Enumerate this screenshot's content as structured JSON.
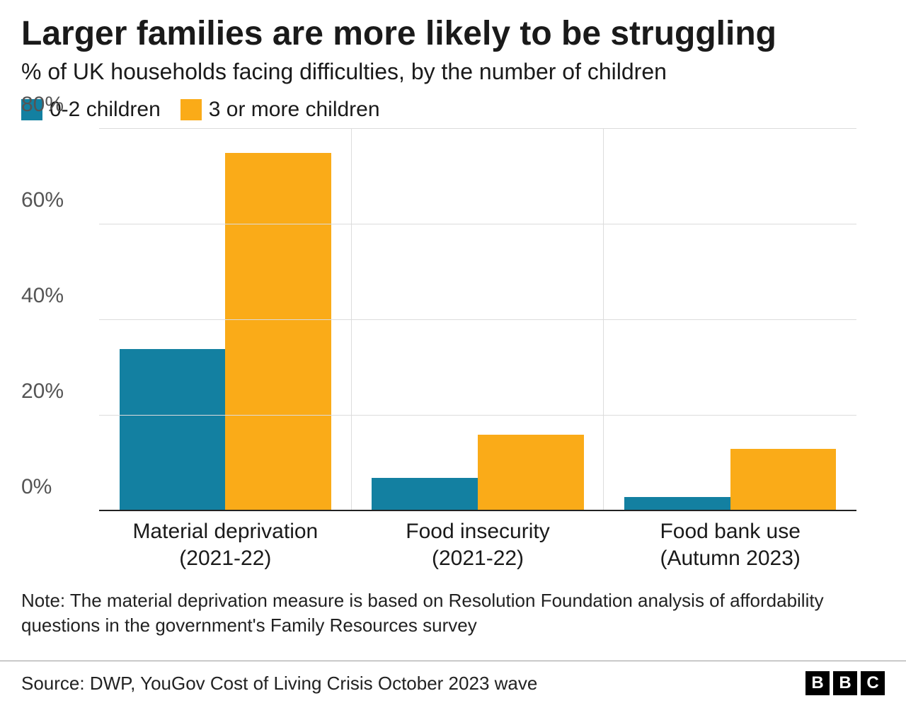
{
  "title": "Larger families are more likely to be struggling",
  "subtitle": "% of UK households facing difficulties, by the number of children",
  "legend": {
    "items": [
      {
        "label": "0-2 children",
        "color": "#1380a1"
      },
      {
        "label": "3 or more children",
        "color": "#faab18"
      }
    ]
  },
  "chart": {
    "type": "bar",
    "ylim": [
      0,
      80
    ],
    "ytick_step": 20,
    "yticks": [
      "0%",
      "20%",
      "40%",
      "60%",
      "80%"
    ],
    "grid_color": "#dcdcdc",
    "baseline_color": "#222222",
    "background_color": "#ffffff",
    "tick_fontsize": 30,
    "label_fontsize": 30,
    "categories": [
      {
        "line1": "Material deprivation",
        "line2": "(2021-22)"
      },
      {
        "line1": "Food insecurity",
        "line2": "(2021-22)"
      },
      {
        "line1": "Food bank use",
        "line2": "(Autumn 2023)"
      }
    ],
    "series": [
      {
        "name": "0-2 children",
        "color": "#1380a1",
        "values": [
          34,
          7,
          3
        ]
      },
      {
        "name": "3 or more children",
        "color": "#faab18",
        "values": [
          75,
          16,
          13
        ]
      }
    ]
  },
  "note": "Note: The material deprivation measure is based on Resolution Foundation analysis of affordability questions in the government's Family Resources survey",
  "source": "Source: DWP, YouGov Cost of Living Crisis October 2023 wave",
  "logo": {
    "letters": [
      "B",
      "B",
      "C"
    ]
  }
}
